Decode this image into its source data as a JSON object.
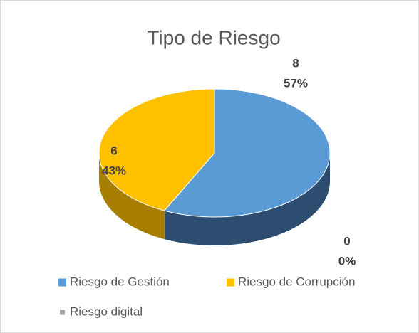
{
  "chart_data": {
    "type": "pie3d",
    "title": "Tipo de Riesgo",
    "categories": [
      "Riesgo de Gestión",
      "Riesgo de Corrupción",
      "Riesgo digital"
    ],
    "values": [
      8,
      6,
      0
    ],
    "percents": [
      57,
      43,
      0
    ],
    "percent_labels": [
      "57%",
      "43%",
      "0%"
    ],
    "colors": [
      "#5b9bd5",
      "#ffc000",
      "#a5a5a5"
    ],
    "side_colors": [
      "#2c4d70",
      "#a87e00",
      "#6e6e6e"
    ],
    "legend": "bottom"
  }
}
